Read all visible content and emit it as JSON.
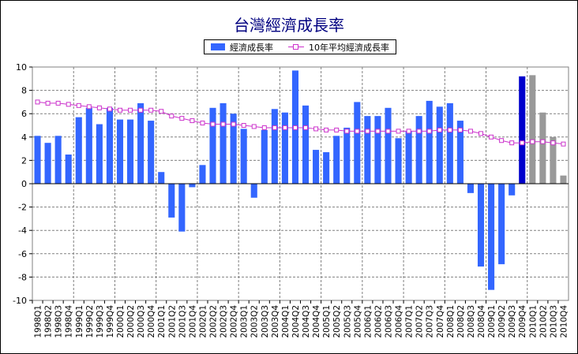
{
  "chart_data": {
    "type": "bar",
    "title": "台灣經濟成長率",
    "xlabel": "",
    "ylabel": "",
    "ylim": [
      -10,
      10
    ],
    "yticks": [
      10,
      8,
      6,
      4,
      2,
      0,
      -2,
      -4,
      -6,
      -8,
      -10
    ],
    "grid": true,
    "legend_position": "top",
    "categories": [
      "1998Q1",
      "1998Q2",
      "1998Q3",
      "1998Q4",
      "1999Q1",
      "1999Q2",
      "1999Q3",
      "1999Q4",
      "2000Q1",
      "2000Q2",
      "2000Q3",
      "2000Q4",
      "2001Q1",
      "2001Q2",
      "2001Q3",
      "2001Q4",
      "2002Q1",
      "2002Q2",
      "2002Q3",
      "2002Q4",
      "2003Q1",
      "2003Q2",
      "2003Q3",
      "2003Q4",
      "2004Q1",
      "2004Q2",
      "2004Q3",
      "2004Q4",
      "2005Q1",
      "2005Q2",
      "2005Q3",
      "2005Q4",
      "2006Q1",
      "2006Q2",
      "2006Q3",
      "2006Q4",
      "2007Q1",
      "2007Q2",
      "2007Q3",
      "2007Q4",
      "2008Q1",
      "2008Q2",
      "2008Q3",
      "2008Q4",
      "2009Q1",
      "2009Q2",
      "2009Q3",
      "2009Q4",
      "2010Q1",
      "2010Q2",
      "2010Q3",
      "2010Q4"
    ],
    "series": [
      {
        "name": "經濟成長率",
        "type": "bar",
        "color": "#3366ff",
        "values": [
          4.1,
          3.5,
          4.1,
          2.5,
          5.7,
          6.5,
          5.1,
          6.5,
          5.5,
          5.5,
          6.9,
          5.4,
          1.0,
          -2.9,
          -4.1,
          -0.3,
          1.6,
          6.5,
          6.9,
          6.0,
          4.7,
          -1.2,
          4.6,
          6.4,
          6.1,
          9.7,
          6.7,
          2.9,
          2.7,
          4.1,
          4.8,
          7.0,
          5.8,
          5.8,
          6.5,
          3.9,
          4.5,
          5.8,
          7.1,
          6.6,
          6.9,
          5.4,
          -0.8,
          -7.1,
          -9.1,
          -6.9,
          -1.0,
          9.2,
          9.3,
          6.1,
          4.0,
          0.7
        ]
      },
      {
        "name": "10年平均經濟成長率",
        "type": "line",
        "color": "#cc33cc",
        "values": [
          7.0,
          6.9,
          6.9,
          6.8,
          6.7,
          6.6,
          6.5,
          6.4,
          6.3,
          6.3,
          6.3,
          6.3,
          6.2,
          5.8,
          5.6,
          5.4,
          5.2,
          5.1,
          5.1,
          5.1,
          5.0,
          4.9,
          4.8,
          4.8,
          4.8,
          4.8,
          4.8,
          4.7,
          4.6,
          4.6,
          4.5,
          4.5,
          4.5,
          4.5,
          4.5,
          4.5,
          4.5,
          4.5,
          4.5,
          4.6,
          4.6,
          4.6,
          4.5,
          4.3,
          4.0,
          3.7,
          3.5,
          3.5,
          3.6,
          3.6,
          3.5,
          3.4
        ]
      }
    ],
    "bar_color_overrides": [
      {
        "index": 47,
        "color": "#0000cc"
      },
      {
        "index": 48,
        "color": "#999999"
      },
      {
        "index": 49,
        "color": "#999999"
      },
      {
        "index": 50,
        "color": "#999999"
      },
      {
        "index": 51,
        "color": "#999999"
      }
    ]
  },
  "legend": {
    "bar_label": "經濟成長率",
    "line_label": "10年平均經濟成長率"
  }
}
